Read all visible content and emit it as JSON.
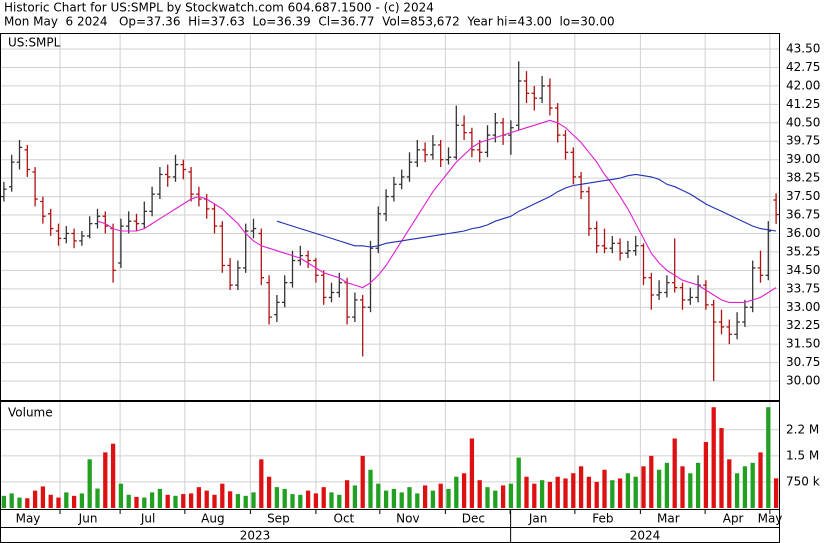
{
  "chart_data": [
    {
      "type": "ohlc",
      "title": "Historic Chart for US:SMPL by Stockwatch.com 604.687.1500 - (c) 2024",
      "subtitle": "Mon May  6 2024   Op=37.36  Hi=37.63  Lo=36.39  Cl=36.77  Vol=853,672  Year hi=43.00  lo=30.00",
      "symbol": "US:SMPL",
      "open": [
        37.5,
        37.9,
        38.9,
        39.4,
        38.5,
        37.3,
        36.8,
        36.1,
        35.8,
        36.0,
        35.7,
        35.9,
        36.4,
        36.7,
        36.2,
        34.8,
        36.3,
        36.5,
        36.4,
        36.9,
        37.6,
        38.4,
        38.3,
        38.8,
        38.5,
        37.6,
        37.4,
        37.0,
        36.3,
        34.7,
        33.9,
        34.6,
        36.1,
        36.0,
        34.0,
        32.7,
        33.2,
        34.0,
        34.9,
        35.1,
        34.9,
        34.3,
        33.4,
        33.6,
        34.0,
        32.6,
        33.3,
        33.0,
        35.4,
        36.8,
        37.5,
        38.0,
        38.3,
        38.9,
        39.4,
        39.2,
        39.6,
        39.0,
        39.1,
        40.4,
        40.1,
        39.4,
        39.3,
        40.0,
        40.5,
        40.0,
        40.4,
        42.2,
        41.7,
        41.5,
        42.0,
        41.1,
        40.0,
        39.3,
        38.3,
        37.7,
        36.2,
        35.5,
        35.4,
        35.6,
        35.2,
        35.3,
        35.5,
        34.2,
        33.5,
        33.6,
        34.0,
        33.8,
        33.3,
        33.4,
        33.9,
        33.1,
        32.4,
        32.2,
        31.9,
        32.4,
        33.0,
        34.6,
        34.3,
        37.36
      ],
      "high": [
        38.1,
        39.2,
        39.8,
        39.6,
        38.7,
        37.5,
        37.0,
        36.4,
        36.3,
        36.2,
        36.1,
        36.7,
        37.0,
        36.9,
        36.4,
        36.6,
        36.9,
        36.8,
        37.3,
        37.9,
        38.7,
        38.8,
        39.2,
        39.0,
        38.7,
        37.9,
        37.6,
        37.2,
        36.5,
        35.0,
        34.9,
        36.4,
        36.6,
        36.2,
        34.3,
        33.5,
        34.3,
        35.3,
        35.5,
        35.3,
        35.0,
        34.5,
        34.0,
        34.4,
        34.2,
        33.6,
        33.5,
        35.7,
        37.1,
        37.8,
        38.3,
        38.6,
        39.3,
        39.8,
        39.7,
        40.0,
        39.8,
        39.5,
        41.2,
        40.8,
        40.3,
        39.8,
        40.4,
        40.9,
        40.7,
        40.6,
        43.0,
        42.6,
        42.0,
        42.4,
        42.3,
        41.3,
        40.2,
        39.5,
        38.5,
        37.9,
        36.5,
        36.2,
        35.9,
        35.8,
        35.7,
        35.9,
        35.6,
        34.4,
        34.1,
        34.3,
        35.8,
        34.0,
        33.8,
        34.3,
        34.1,
        33.3,
        32.9,
        32.5,
        32.8,
        33.3,
        34.9,
        35.3,
        36.5,
        37.63
      ],
      "low": [
        37.3,
        37.7,
        38.6,
        38.3,
        37.1,
        36.4,
        35.9,
        35.5,
        35.6,
        35.4,
        35.5,
        35.8,
        36.2,
        36.0,
        34.0,
        34.6,
        36.0,
        36.1,
        36.2,
        36.7,
        37.4,
        37.9,
        38.1,
        38.2,
        37.3,
        37.1,
        36.6,
        36.0,
        34.4,
        33.7,
        33.7,
        34.4,
        35.8,
        33.9,
        32.3,
        32.4,
        33.0,
        33.8,
        34.7,
        34.6,
        34.0,
        33.1,
        33.2,
        33.4,
        32.3,
        32.4,
        31.0,
        32.8,
        35.2,
        36.5,
        37.3,
        37.8,
        38.1,
        38.7,
        38.9,
        39.0,
        38.7,
        38.8,
        39.0,
        39.8,
        39.1,
        38.9,
        39.1,
        39.7,
        39.6,
        39.2,
        40.2,
        41.3,
        41.0,
        41.3,
        40.8,
        39.7,
        39.0,
        38.0,
        37.4,
        35.9,
        35.2,
        35.2,
        35.2,
        34.9,
        35.0,
        35.1,
        33.9,
        32.9,
        33.3,
        33.4,
        33.6,
        32.9,
        33.1,
        33.2,
        32.9,
        30.0,
        31.9,
        31.5,
        31.7,
        32.2,
        32.8,
        34.0,
        34.1,
        36.39
      ],
      "close": [
        37.8,
        38.9,
        39.5,
        38.6,
        37.4,
        36.7,
        36.2,
        35.8,
        36.0,
        35.7,
        35.9,
        36.4,
        36.7,
        36.3,
        34.5,
        36.3,
        36.5,
        36.4,
        36.9,
        37.6,
        38.4,
        38.3,
        38.8,
        38.6,
        37.6,
        37.4,
        37.0,
        36.3,
        34.7,
        33.9,
        34.6,
        36.1,
        36.2,
        34.2,
        32.6,
        33.2,
        34.0,
        34.9,
        35.1,
        34.9,
        34.3,
        33.4,
        33.6,
        34.0,
        32.6,
        33.3,
        33.0,
        35.4,
        36.8,
        37.5,
        38.0,
        38.3,
        38.9,
        39.4,
        39.2,
        39.6,
        39.0,
        39.1,
        40.4,
        40.1,
        39.4,
        39.3,
        40.0,
        40.5,
        40.0,
        40.3,
        42.2,
        41.7,
        41.5,
        42.0,
        41.1,
        40.0,
        39.3,
        38.3,
        37.7,
        36.2,
        35.5,
        35.4,
        35.6,
        35.2,
        35.3,
        35.5,
        34.2,
        33.5,
        33.6,
        34.0,
        33.8,
        33.3,
        33.4,
        33.9,
        33.1,
        32.4,
        32.2,
        31.9,
        32.4,
        33.0,
        34.6,
        34.3,
        36.1,
        36.77
      ],
      "bar_colors": {
        "up": "#333333",
        "down": "#b01010"
      },
      "series": [
        {
          "color": "#e020d0",
          "values": [
            null,
            null,
            null,
            null,
            null,
            null,
            null,
            null,
            null,
            null,
            null,
            null,
            36.5,
            36.4,
            36.2,
            36.1,
            36.1,
            36.1,
            36.2,
            36.4,
            36.6,
            36.8,
            37.0,
            37.2,
            37.4,
            37.5,
            37.4,
            37.2,
            37.0,
            36.7,
            36.4,
            36.0,
            35.7,
            35.5,
            35.4,
            35.3,
            35.2,
            35.1,
            35.0,
            34.8,
            34.6,
            34.4,
            34.3,
            34.2,
            34.0,
            33.9,
            33.8,
            34.0,
            34.3,
            34.7,
            35.2,
            35.7,
            36.2,
            36.7,
            37.2,
            37.7,
            38.1,
            38.5,
            38.9,
            39.2,
            39.5,
            39.7,
            39.8,
            39.9,
            40.0,
            40.1,
            40.2,
            40.3,
            40.4,
            40.5,
            40.6,
            40.5,
            40.3,
            40.0,
            39.7,
            39.3,
            38.9,
            38.4,
            38.0,
            37.5,
            37.0,
            36.4,
            35.8,
            35.2,
            34.8,
            34.5,
            34.3,
            34.1,
            34.0,
            33.9,
            33.7,
            33.5,
            33.3,
            33.2,
            33.2,
            33.2,
            33.3,
            33.4,
            33.6,
            33.8
          ]
        },
        {
          "color": "#2030b0",
          "values": [
            null,
            null,
            null,
            null,
            null,
            null,
            null,
            null,
            null,
            null,
            null,
            null,
            null,
            null,
            null,
            null,
            null,
            null,
            null,
            null,
            null,
            null,
            null,
            null,
            null,
            null,
            null,
            null,
            null,
            null,
            null,
            null,
            null,
            null,
            null,
            36.5,
            36.4,
            36.3,
            36.2,
            36.1,
            36.0,
            35.9,
            35.8,
            35.7,
            35.6,
            35.5,
            35.5,
            35.45,
            35.5,
            35.6,
            35.65,
            35.7,
            35.75,
            35.8,
            35.85,
            35.9,
            35.95,
            36.0,
            36.05,
            36.1,
            36.2,
            36.25,
            36.35,
            36.5,
            36.6,
            36.7,
            36.9,
            37.05,
            37.2,
            37.35,
            37.5,
            37.7,
            37.85,
            37.95,
            38.0,
            38.05,
            38.1,
            38.15,
            38.2,
            38.25,
            38.35,
            38.4,
            38.35,
            38.3,
            38.2,
            38.0,
            37.9,
            37.75,
            37.6,
            37.4,
            37.2,
            37.05,
            36.9,
            36.75,
            36.6,
            36.45,
            36.3,
            36.2,
            36.15,
            36.1
          ]
        }
      ],
      "ylim": [
        29.23,
        44.11
      ],
      "yticks": [
        {
          "value": 30,
          "label": "30.00"
        },
        {
          "value": 30.75,
          "label": "30.75"
        },
        {
          "value": 31.5,
          "label": "31.50"
        },
        {
          "value": 32.25,
          "label": "32.25"
        },
        {
          "value": 33,
          "label": "33.00"
        },
        {
          "value": 33.75,
          "label": "33.75"
        },
        {
          "value": 34.5,
          "label": "34.50"
        },
        {
          "value": 35.25,
          "label": "35.25"
        },
        {
          "value": 36,
          "label": "36.00"
        },
        {
          "value": 36.75,
          "label": "36.75"
        },
        {
          "value": 37.5,
          "label": "37.50"
        },
        {
          "value": 38.25,
          "label": "38.25"
        },
        {
          "value": 39,
          "label": "39.00"
        },
        {
          "value": 39.75,
          "label": "39.75"
        },
        {
          "value": 40.5,
          "label": "40.50"
        },
        {
          "value": 41.25,
          "label": "41.25"
        },
        {
          "value": 42,
          "label": "42.00"
        },
        {
          "value": 42.75,
          "label": "42.75"
        },
        {
          "value": 43.5,
          "label": "43.50"
        }
      ],
      "xlim": [
        0,
        100
      ],
      "xticks": [
        {
          "value": 0,
          "label": "May"
        },
        {
          "value": 7.7,
          "label": "Jun"
        },
        {
          "value": 15.4,
          "label": "Jul"
        },
        {
          "value": 23.7,
          "label": "Aug"
        },
        {
          "value": 32.1,
          "label": "Sep"
        },
        {
          "value": 40.5,
          "label": "Oct"
        },
        {
          "value": 48.7,
          "label": "Nov"
        },
        {
          "value": 57.1,
          "label": "Dec"
        },
        {
          "value": 65.4,
          "label": "Jan"
        },
        {
          "value": 73.7,
          "label": "Feb"
        },
        {
          "value": 82.1,
          "label": "Mar"
        },
        {
          "value": 90.4,
          "label": "Apr"
        },
        {
          "value": 98.7,
          "label": "May"
        }
      ],
      "years": [
        {
          "label": "2023",
          "start": 0,
          "end": 65.4
        },
        {
          "label": "2024",
          "start": 65.4,
          "end": 100
        }
      ],
      "grid": true
    },
    {
      "type": "bar",
      "title": "Volume",
      "values": [
        350000,
        420000,
        300000,
        280000,
        500000,
        620000,
        380000,
        300000,
        450000,
        350000,
        420000,
        1400000,
        560000,
        1600000,
        1850000,
        700000,
        380000,
        320000,
        300000,
        450000,
        550000,
        380000,
        350000,
        400000,
        420000,
        600000,
        500000,
        380000,
        700000,
        480000,
        400000,
        350000,
        450000,
        1400000,
        900000,
        600000,
        550000,
        400000,
        380000,
        500000,
        420000,
        600000,
        450000,
        380000,
        800000,
        650000,
        1500000,
        1100000,
        700000,
        500000,
        550000,
        450000,
        600000,
        420000,
        650000,
        500000,
        700000,
        550000,
        900000,
        1000000,
        2000000,
        800000,
        600000,
        500000,
        650000,
        700000,
        1450000,
        900000,
        700000,
        800000,
        750000,
        900000,
        850000,
        1000000,
        1200000,
        900000,
        750000,
        1100000,
        800000,
        850000,
        1000000,
        900000,
        1200000,
        1500000,
        1100000,
        1300000,
        2000000,
        1200000,
        1000000,
        1300000,
        1900000,
        2900000,
        2300000,
        1400000,
        1000000,
        1200000,
        1300000,
        1600000,
        2900000,
        853672
      ],
      "colors": {
        "up": "#22a022",
        "down": "#dd1111"
      },
      "ylim": [
        0,
        3050000
      ],
      "yticks": [
        {
          "value": 750000,
          "label": "750 k"
        },
        {
          "value": 1500000,
          "label": "1.5 M"
        },
        {
          "value": 2250000,
          "label": "2.2 M"
        }
      ],
      "grid": true
    }
  ]
}
